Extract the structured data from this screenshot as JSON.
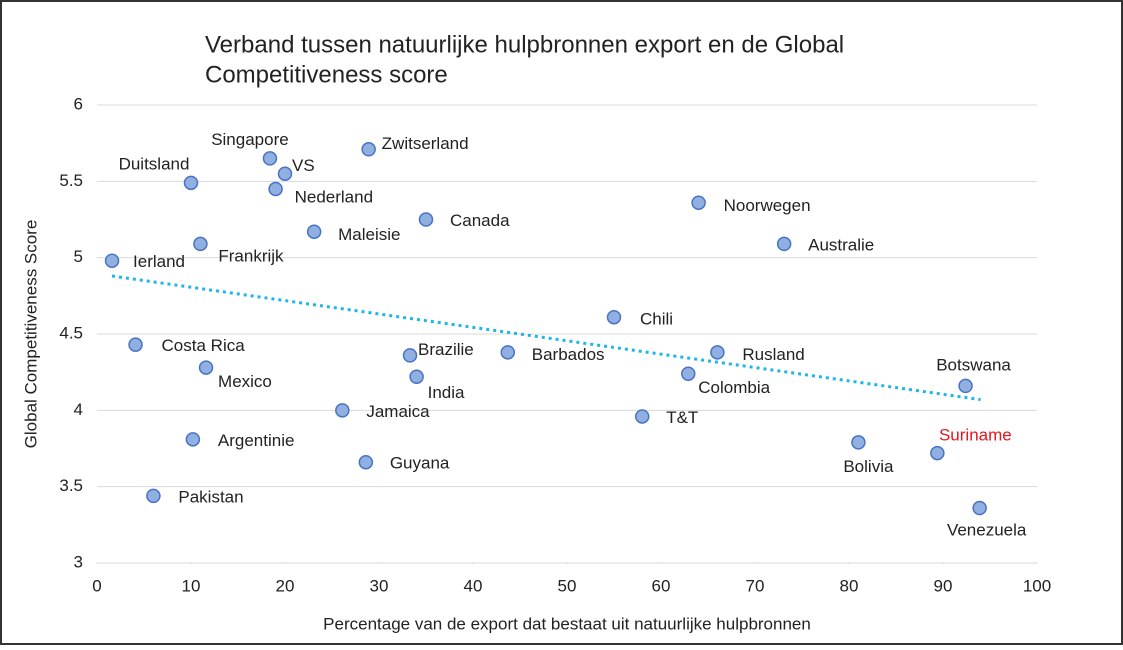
{
  "chart_data": {
    "type": "scatter",
    "title": [
      "Verband tussen natuurlijke hulpbronnen export en de Global",
      "Competitiveness score"
    ],
    "x_label": "Percentage van de export dat bestaat uit natuurlijke hulpbronnen",
    "y_label": "Global Competitiveness Score",
    "labels": [
      "Ierland",
      "Duitsland",
      "Singapore",
      "VS",
      "Nederland",
      "Zwitserland",
      "Canada",
      "Maleisie",
      "Frankrijk",
      "Costa Rica",
      "Mexico",
      "Brazilie",
      "India",
      "Barbados",
      "Chili",
      "Jamaica",
      "Argentinie",
      "Guyana",
      "Pakistan",
      "T&T",
      "Colombia",
      "Rusland",
      "Noorwegen",
      "Australie",
      "Botswana",
      "Bolivia",
      "Suriname",
      "Venezuela"
    ],
    "x": [
      1.6,
      10.0,
      18.4,
      20.0,
      19.0,
      28.9,
      35.0,
      23.1,
      11.0,
      4.1,
      11.6,
      33.3,
      34.0,
      43.7,
      55.0,
      26.1,
      10.2,
      28.6,
      6.0,
      58.0,
      62.9,
      66.0,
      64.0,
      73.1,
      92.4,
      81.0,
      89.4,
      93.9
    ],
    "values": [
      4.98,
      5.49,
      5.65,
      5.55,
      5.45,
      5.71,
      5.25,
      5.17,
      5.09,
      4.43,
      4.28,
      4.36,
      4.22,
      4.38,
      4.61,
      4.0,
      3.81,
      3.66,
      3.44,
      3.96,
      4.24,
      4.38,
      5.36,
      5.09,
      4.16,
      3.79,
      3.72,
      3.36
    ],
    "label_colors": [
      "#222",
      "#222",
      "#222",
      "#222",
      "#222",
      "#222",
      "#222",
      "#222",
      "#222",
      "#222",
      "#222",
      "#222",
      "#222",
      "#222",
      "#222",
      "#222",
      "#222",
      "#222",
      "#222",
      "#222",
      "#222",
      "#222",
      "#222",
      "#222",
      "#222",
      "#222",
      "#e8141c",
      "#222"
    ],
    "color": "#8fb0e0",
    "edge_color": "#4a72c4",
    "trendline": {
      "x": [
        1.6,
        94
      ],
      "values": [
        4.88,
        4.07
      ],
      "color": "#1fb4ec"
    },
    "xlim": [
      0,
      100
    ],
    "xticks": [
      0,
      10,
      20,
      30,
      40,
      50,
      60,
      70,
      80,
      90,
      100
    ],
    "ylim": [
      3,
      6
    ],
    "yticks": [
      3,
      3.5,
      4,
      4.5,
      5,
      5.5,
      6
    ],
    "grid": true
  }
}
